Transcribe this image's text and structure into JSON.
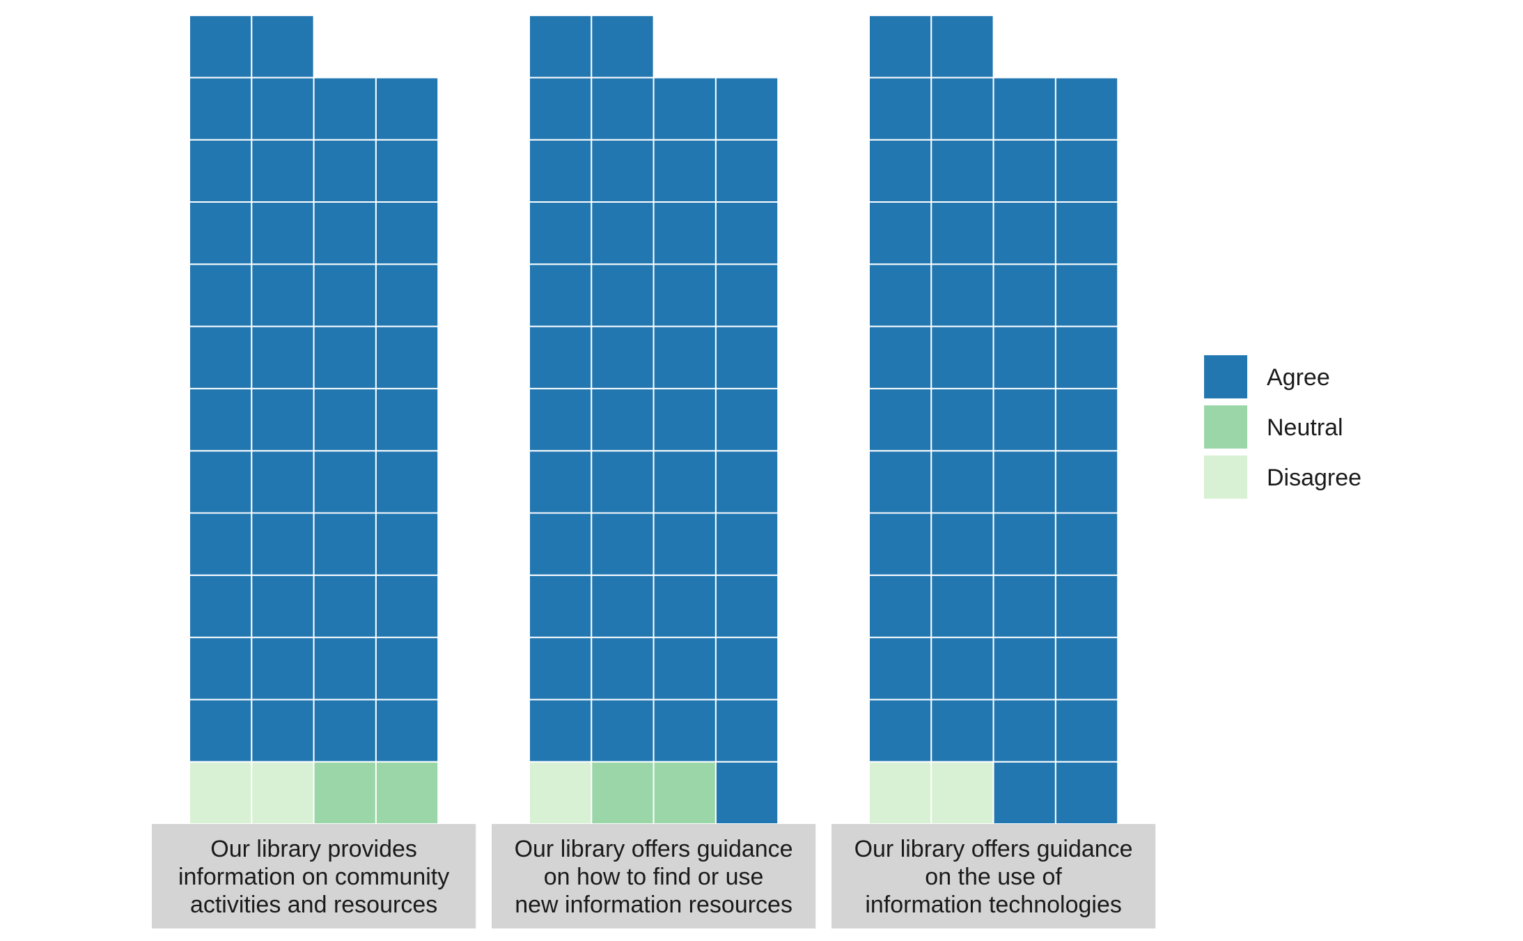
{
  "chart_data": {
    "type": "waffle",
    "units_per_panel": 50,
    "columns_per_panel": 4,
    "fill_order": [
      "Disagree",
      "Neutral",
      "Agree"
    ],
    "colors": {
      "Agree": "#2277b1",
      "Neutral": "#9ad6a7",
      "Disagree": "#d8f0d3"
    },
    "strip_color": "#d4d4d4",
    "cell_border": "#ffffff",
    "legend": {
      "position": "right",
      "entries": [
        "Agree",
        "Neutral",
        "Disagree"
      ]
    },
    "panels": [
      {
        "label_lines": [
          "Our library provides",
          "information on community",
          "activities and resources"
        ],
        "counts": {
          "Disagree": 2,
          "Neutral": 2,
          "Agree": 46
        }
      },
      {
        "label_lines": [
          "Our library offers guidance",
          "on how to find or use",
          "new information resources"
        ],
        "counts": {
          "Disagree": 1,
          "Neutral": 2,
          "Agree": 47
        }
      },
      {
        "label_lines": [
          "Our library offers guidance",
          "on the use of",
          "information technologies"
        ],
        "counts": {
          "Disagree": 2,
          "Neutral": 0,
          "Agree": 48
        }
      }
    ]
  }
}
